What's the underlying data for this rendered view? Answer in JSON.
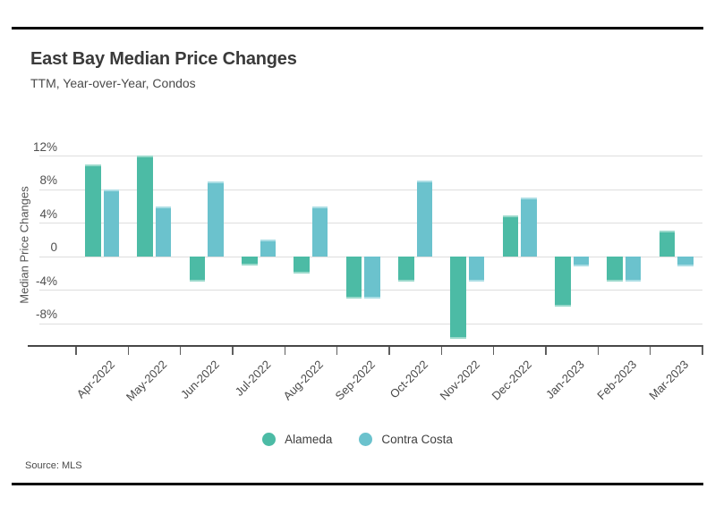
{
  "page": {
    "title": "East Bay Median Price Changes",
    "subtitle": "TTM, Year-over-Year, Condos",
    "source": "Source: MLS"
  },
  "chart_data": {
    "type": "bar",
    "title": "East Bay Median Price Changes",
    "subtitle": "TTM, Year-over-Year, Condos",
    "xlabel": "",
    "ylabel": "Median Price Changes",
    "categories": [
      "Apr-2022",
      "May-2022",
      "Jun-2022",
      "Jul-2022",
      "Aug-2022",
      "Sep-2022",
      "Oct-2022",
      "Nov-2022",
      "Dec-2022",
      "Jan-2023",
      "Feb-2023",
      "Mar-2023"
    ],
    "series": [
      {
        "name": "Alameda",
        "color": "#4CBBA5",
        "values": [
          11.0,
          12.1,
          -3.0,
          -1.0,
          -2.0,
          -5.0,
          -3.0,
          -9.8,
          5.0,
          -5.9,
          -3.0,
          3.1
        ]
      },
      {
        "name": "Contra Costa",
        "color": "#6BC2CD",
        "values": [
          8.0,
          6.0,
          9.0,
          2.1,
          6.0,
          -5.0,
          9.1,
          -3.0,
          7.1,
          -1.1,
          -3.0,
          -1.1
        ]
      }
    ],
    "yticks": [
      {
        "label": "12%",
        "value": 12
      },
      {
        "label": "8%",
        "value": 8
      },
      {
        "label": "4%",
        "value": 4
      },
      {
        "label": "0",
        "value": 0
      },
      {
        "label": "-4%",
        "value": -4
      },
      {
        "label": "-8%",
        "value": -8
      }
    ],
    "ylim": [
      -10.6,
      14.7
    ],
    "grid": "horizontal",
    "legend_position": "bottom",
    "units": "percent"
  }
}
